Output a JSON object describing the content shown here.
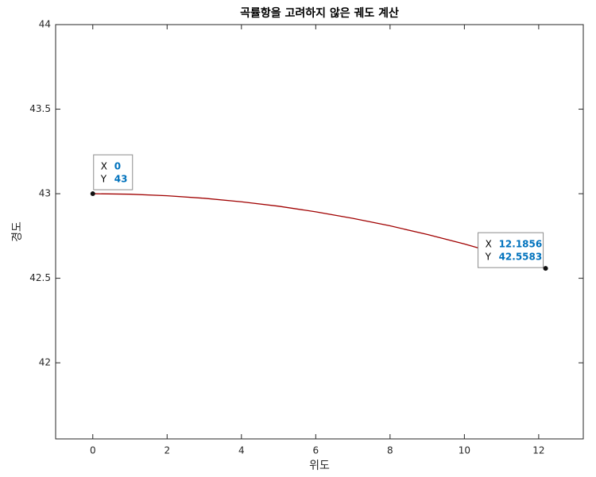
{
  "chart_data": {
    "type": "line",
    "title": "곡률항을 고려하지 않은 궤도 계산",
    "x_label": "위도",
    "y_label": "경도",
    "series": [
      {
        "color": "#a00000",
        "x": [
          0,
          1,
          2,
          3,
          4,
          5,
          6,
          7,
          8,
          9,
          10,
          11,
          12,
          12.1856
        ],
        "values": [
          43,
          42.997,
          42.988,
          42.973,
          42.952,
          42.926,
          42.893,
          42.854,
          42.81,
          42.759,
          42.703,
          42.64,
          42.572,
          42.5583
        ]
      }
    ],
    "xlim": [
      -1,
      13.2
    ],
    "ylim": [
      41.55,
      44
    ],
    "xticks": [
      0,
      2,
      4,
      6,
      8,
      10,
      12
    ],
    "yticks": [
      42,
      42.5,
      43,
      43.5,
      44
    ],
    "datatips": {
      "x_label": "X",
      "y_label": "Y"
    }
  }
}
